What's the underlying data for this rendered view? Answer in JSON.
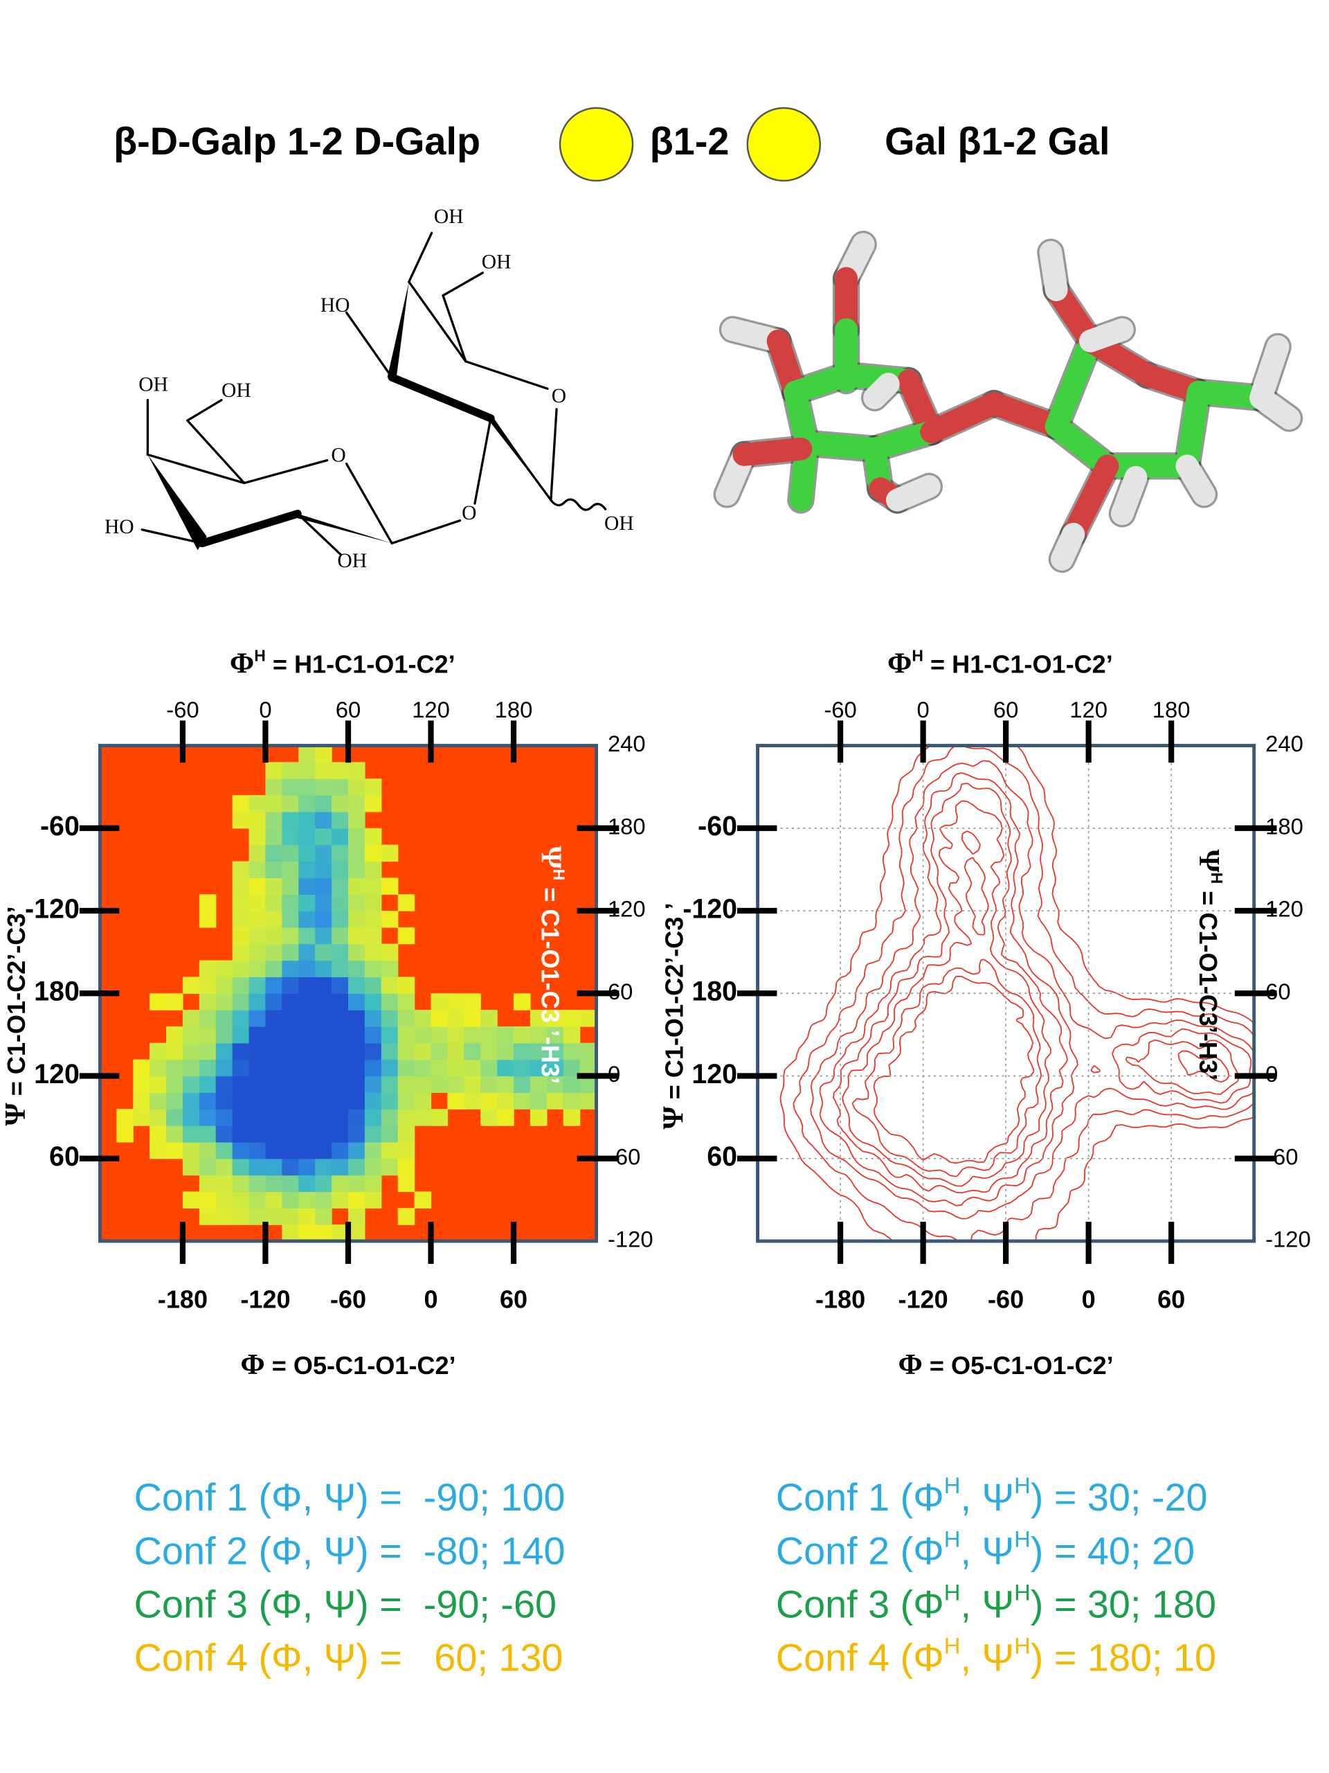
{
  "header": {
    "iupac": "β-D-Galp 1-2 D-Galp",
    "linkage": "β1-2",
    "short_name": "Gal β1-2 Gal"
  },
  "structure": {
    "atom_labels": [
      "OH",
      "OH",
      "HO",
      "OH",
      "OH",
      "O",
      "O",
      "O",
      "HO",
      "OH",
      "OH"
    ]
  },
  "chart_data": [
    {
      "type": "heatmap",
      "xlabel": {
        "symbol": "Φ",
        "rest": " = O5-C1-O1-C2’"
      },
      "x2label": {
        "symbol": "Φ",
        "sup": "H",
        "rest": " = H1-C1-O1-C2’"
      },
      "ylabel": {
        "symbol": "Ψ",
        "rest": " = C1-O1-C2’-C3’"
      },
      "y2label": {
        "symbol": "Ψ",
        "sup": "H",
        "rest": " = C1-O1-C3 ’-H3’"
      },
      "y2label_color": "#ffffff",
      "xlim": [
        -240,
        120
      ],
      "xticks": [
        -180,
        -120,
        -60,
        0,
        60
      ],
      "x2lim": [
        -120,
        240
      ],
      "x2ticks": [
        -60,
        0,
        60,
        120,
        180
      ],
      "ylim": [
        0,
        360
      ],
      "yticks": [
        {
          "value": 300,
          "label": "-60"
        },
        {
          "value": 240,
          "label": "-120"
        },
        180,
        120,
        60
      ],
      "y2lim": [
        -120,
        240
      ],
      "y2ticks": [
        240,
        180,
        120,
        60,
        0,
        -60,
        -120
      ],
      "grid": false,
      "background": "#ff4500"
    },
    {
      "type": "contour",
      "xlabel": {
        "symbol": "Φ",
        "rest": " = O5-C1-O1-C2’"
      },
      "x2label": {
        "symbol": "Φ",
        "sup": "H",
        "rest": " = H1-C1-O1-C2’"
      },
      "ylabel": {
        "symbol": "Ψ",
        "rest": " = C1-O1-C2’-C3 ’"
      },
      "y2label": {
        "symbol": "Ψ",
        "sup": "H",
        "rest": " = C1-O1-C3’-H3’"
      },
      "y2label_color": "#000000",
      "xlim": [
        -240,
        120
      ],
      "xticks": [
        -180,
        -120,
        -60,
        0,
        60
      ],
      "x2lim": [
        -120,
        240
      ],
      "x2ticks": [
        -60,
        0,
        60,
        120,
        180
      ],
      "ylim": [
        0,
        360
      ],
      "yticks": [
        {
          "value": 300,
          "label": "-60"
        },
        {
          "value": 240,
          "label": "-120"
        },
        180,
        120,
        60
      ],
      "y2lim": [
        -120,
        240
      ],
      "y2ticks": [
        240,
        180,
        120,
        60,
        0,
        -60,
        -120
      ],
      "grid": true,
      "background": "#ffffff",
      "color": "#e8352a"
    }
  ],
  "conformations": [
    {
      "lines": [
        {
          "parts": [
            "Conf 1 (Φ, Ψ) =  -90; 100"
          ],
          "color": "#29abe2"
        },
        {
          "parts": [
            "Conf 2 (Φ, Ψ) =  -80; 140"
          ],
          "color": "#29abe2"
        },
        {
          "parts": [
            "Conf 3 (Φ, Ψ) =  -90; -60"
          ],
          "color": "#1aa04a"
        },
        {
          "parts": [
            "Conf 4 (Φ, Ψ) =   60; 130"
          ],
          "color": "#f5b800"
        }
      ]
    },
    {
      "lines": [
        {
          "parts": [
            "Conf 1 (Φ",
            "H",
            ", Ψ",
            "H",
            ") = 30; -20"
          ],
          "color": "#29abe2"
        },
        {
          "parts": [
            "Conf 2 (Φ",
            "H",
            ", Ψ",
            "H",
            ") = 40; 20"
          ],
          "color": "#29abe2"
        },
        {
          "parts": [
            "Conf 3 (Φ",
            "H",
            ", Ψ",
            "H",
            ") = 30; 180"
          ],
          "color": "#1aa04a"
        },
        {
          "parts": [
            "Conf 4 (Φ",
            "H",
            ", Ψ",
            "H",
            ") = 180; 10"
          ],
          "color": "#f5b800"
        }
      ]
    }
  ]
}
